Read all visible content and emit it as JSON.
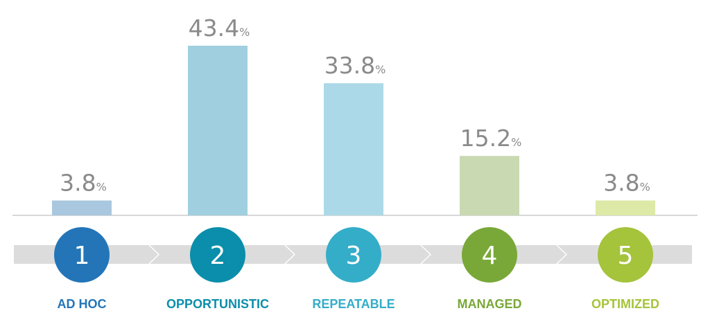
{
  "chart_data": {
    "type": "bar",
    "categories": [
      "AD HOC",
      "OPPORTUNISTIC",
      "REPEATABLE",
      "MANAGED",
      "OPTIMIZED"
    ],
    "values": [
      3.8,
      43.4,
      33.8,
      15.2,
      3.8
    ],
    "value_labels": [
      "3.8",
      "43.4",
      "33.8",
      "15.2",
      "3.8"
    ],
    "unit": "%",
    "step_numbers": [
      "1",
      "2",
      "3",
      "4",
      "5"
    ],
    "ylim": [
      0,
      43.4
    ],
    "grid": false,
    "legend": "none",
    "colors": {
      "bars": [
        "#a9c7de",
        "#a0cfe0",
        "#acd9e7",
        "#c9d9b2",
        "#dde9a6"
      ],
      "circles": [
        "#2375b8",
        "#0a8eab",
        "#34adc9",
        "#79a838",
        "#a5c33b"
      ],
      "labels": [
        "#2375b8",
        "#0a8eab",
        "#34adc9",
        "#79a838",
        "#a5c33b"
      ],
      "value_text": "#8a8a8a",
      "baseline": "#cccccc",
      "arrow_band": "#dcdcdc"
    }
  }
}
